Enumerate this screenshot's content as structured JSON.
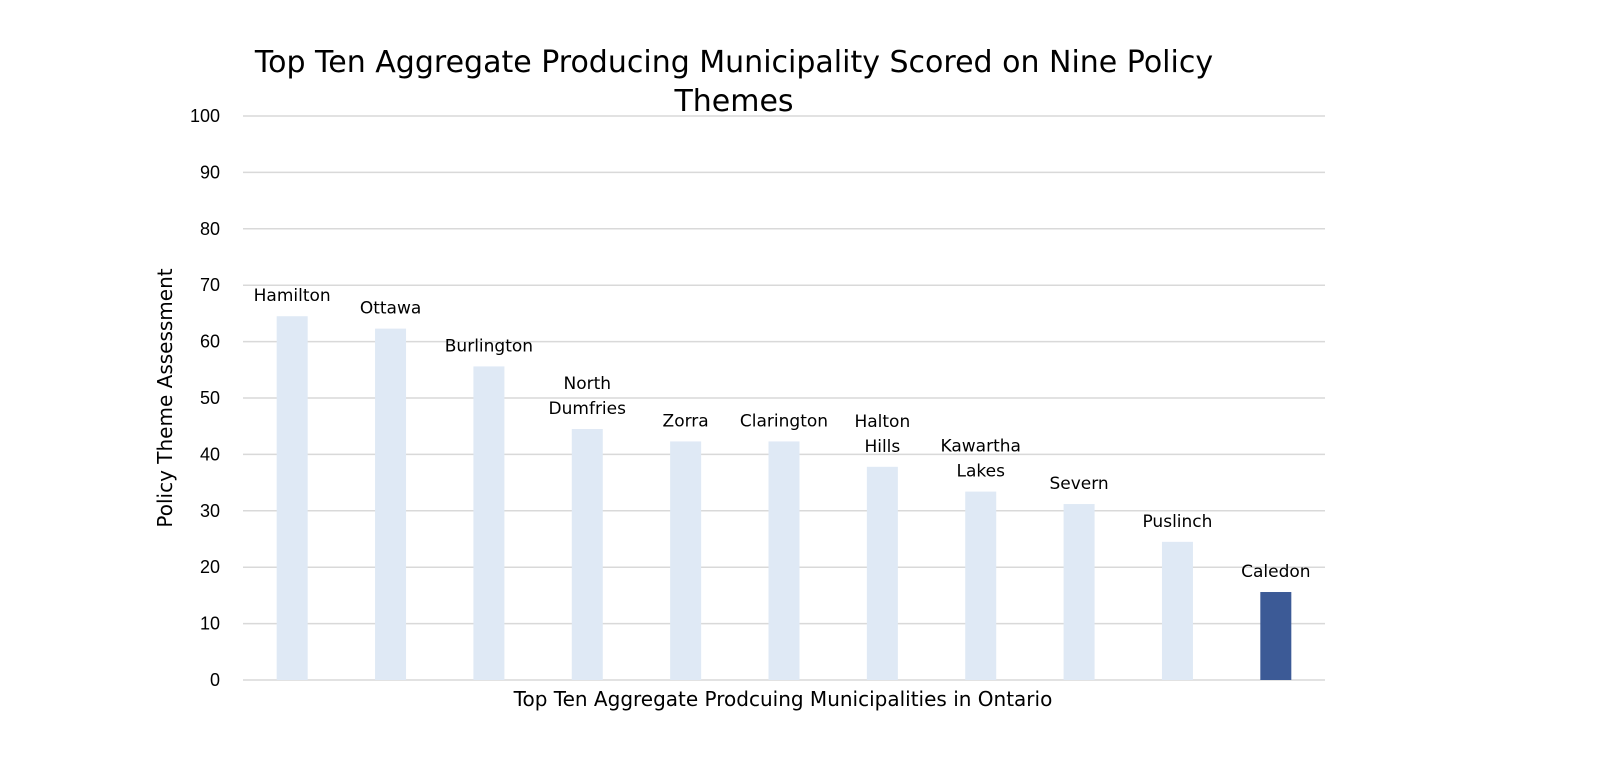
{
  "chart_data": {
    "type": "bar",
    "title_lines": [
      "Top Ten Aggregate Producing Municipality Scored on Nine Policy",
      "Themes"
    ],
    "xlabel": "Top Ten Aggregate Prodcuing Municipalities in Ontario",
    "ylabel": "Policy Theme Assessment",
    "ylim": [
      0,
      100
    ],
    "yticks": [
      0,
      10,
      20,
      30,
      40,
      50,
      60,
      70,
      80,
      90,
      100
    ],
    "grid": true,
    "legend": "none",
    "categories": [
      [
        "Hamilton"
      ],
      [
        "Ottawa"
      ],
      [
        "Burlington"
      ],
      [
        "North",
        "Dumfries"
      ],
      [
        "Zorra"
      ],
      [
        "Clarington"
      ],
      [
        "Halton",
        "Hills"
      ],
      [
        "Kawartha",
        "Lakes"
      ],
      [
        "Severn"
      ],
      [
        "Puslinch"
      ],
      [
        "Caledon"
      ]
    ],
    "values": [
      64.5,
      62.3,
      55.6,
      44.5,
      42.3,
      42.3,
      37.8,
      33.4,
      31.2,
      24.5,
      15.6
    ],
    "colors": {
      "default": "#dfe9f5",
      "highlight": "#3c5a96",
      "grid": "#d9d9d9"
    },
    "highlight_index": 10
  }
}
